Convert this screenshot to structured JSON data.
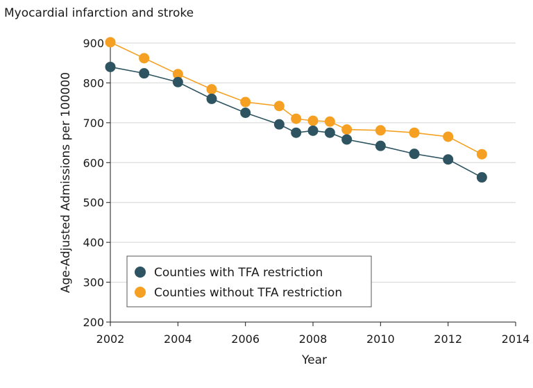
{
  "chart_data": {
    "type": "line",
    "title": "Myocardial infarction and stroke",
    "xlabel": "Year",
    "ylabel": "Age-Adjusted Admissions per 100000",
    "xlim": [
      2002,
      2014
    ],
    "ylim": [
      200,
      900
    ],
    "xticks": [
      2002,
      2004,
      2006,
      2008,
      2010,
      2012,
      2014
    ],
    "yticks": [
      200,
      300,
      400,
      500,
      600,
      700,
      800,
      900
    ],
    "grid": "horizontal",
    "legend_position": "bottom-left",
    "series": [
      {
        "name": "Counties with TFA restriction",
        "color": "#2d5460",
        "points": [
          {
            "x": 2002,
            "y": 840
          },
          {
            "x": 2003,
            "y": 824
          },
          {
            "x": 2004,
            "y": 802
          },
          {
            "x": 2005,
            "y": 760
          },
          {
            "x": 2006,
            "y": 725
          },
          {
            "x": 2007,
            "y": 696
          },
          {
            "x": 2007.5,
            "y": 675
          },
          {
            "x": 2008,
            "y": 680
          },
          {
            "x": 2008.5,
            "y": 675
          },
          {
            "x": 2009,
            "y": 658
          },
          {
            "x": 2010,
            "y": 642
          },
          {
            "x": 2011,
            "y": 622
          },
          {
            "x": 2012,
            "y": 608
          },
          {
            "x": 2013,
            "y": 563
          }
        ]
      },
      {
        "name": "Counties without TFA restriction",
        "color": "#f5a023",
        "points": [
          {
            "x": 2002,
            "y": 902
          },
          {
            "x": 2003,
            "y": 862
          },
          {
            "x": 2004,
            "y": 822
          },
          {
            "x": 2005,
            "y": 784
          },
          {
            "x": 2006,
            "y": 752
          },
          {
            "x": 2007,
            "y": 742
          },
          {
            "x": 2007.5,
            "y": 710
          },
          {
            "x": 2008,
            "y": 705
          },
          {
            "x": 2008.5,
            "y": 703
          },
          {
            "x": 2009,
            "y": 683
          },
          {
            "x": 2010,
            "y": 681
          },
          {
            "x": 2011,
            "y": 675
          },
          {
            "x": 2012,
            "y": 665
          },
          {
            "x": 2013,
            "y": 621
          }
        ]
      }
    ]
  }
}
